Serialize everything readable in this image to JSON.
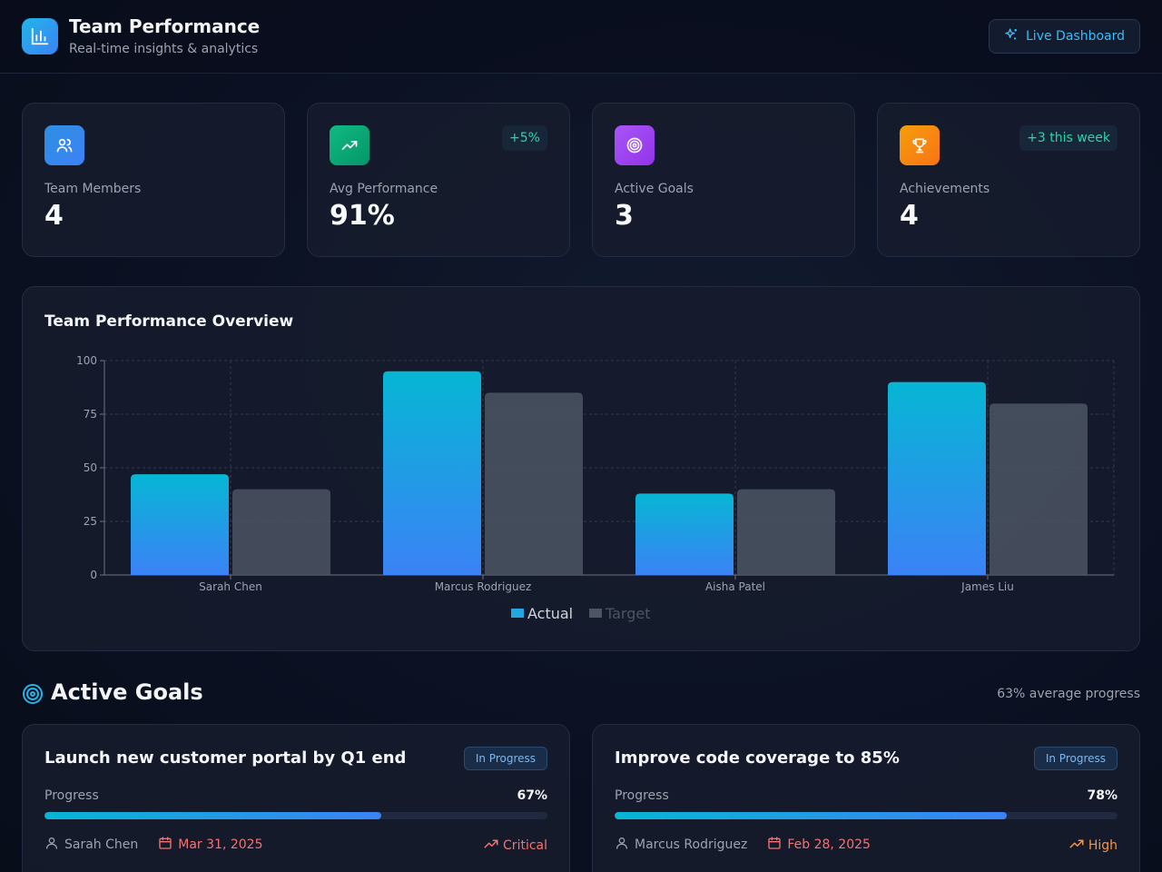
{
  "header": {
    "title": "Team Performance",
    "subtitle": "Real-time insights & analytics",
    "live_button": "Live Dashboard"
  },
  "stats": [
    {
      "label": "Team Members",
      "value": "4",
      "badge": "",
      "icon": "users-icon",
      "color": "#2f8fe0"
    },
    {
      "label": "Avg Performance",
      "value": "91%",
      "badge": "+5%",
      "icon": "trending-up-icon",
      "color": "#10b981"
    },
    {
      "label": "Active Goals",
      "value": "3",
      "badge": "",
      "icon": "target-icon",
      "color": "#9333ea"
    },
    {
      "label": "Achievements",
      "value": "4",
      "badge": "+3 this week",
      "icon": "trophy-icon",
      "color": "#f97316"
    }
  ],
  "chart_panel": {
    "title": "Team Performance Overview"
  },
  "chart_data": {
    "type": "bar",
    "categories": [
      "Sarah Chen",
      "Marcus Rodriguez",
      "Aisha Patel",
      "James Liu"
    ],
    "series": [
      {
        "name": "Actual",
        "values": [
          47,
          95,
          38,
          90
        ],
        "color": "#06b6d4"
      },
      {
        "name": "Target",
        "values": [
          40,
          85,
          40,
          80
        ],
        "color": "#4b5563"
      }
    ],
    "yticks": [
      "0",
      "25",
      "50",
      "75",
      "100"
    ],
    "ylim": [
      0,
      100
    ],
    "grid": true,
    "legend": "bottom"
  },
  "goals": {
    "title": "Active Goals",
    "average": "63% average progress",
    "items": [
      {
        "title": "Launch new customer portal by Q1 end",
        "status": "In Progress",
        "progress_label": "Progress",
        "progress_text": "67%",
        "progress": 0.67,
        "owner": "Sarah Chen",
        "due": "Mar 31, 2025",
        "priority": "Critical",
        "priority_color": "#f87171"
      },
      {
        "title": "Improve code coverage to 85%",
        "status": "In Progress",
        "progress_label": "Progress",
        "progress_text": "78%",
        "progress": 0.78,
        "owner": "Marcus Rodriguez",
        "due": "Feb 28, 2025",
        "priority": "High",
        "priority_color": "#fb923c"
      }
    ]
  }
}
